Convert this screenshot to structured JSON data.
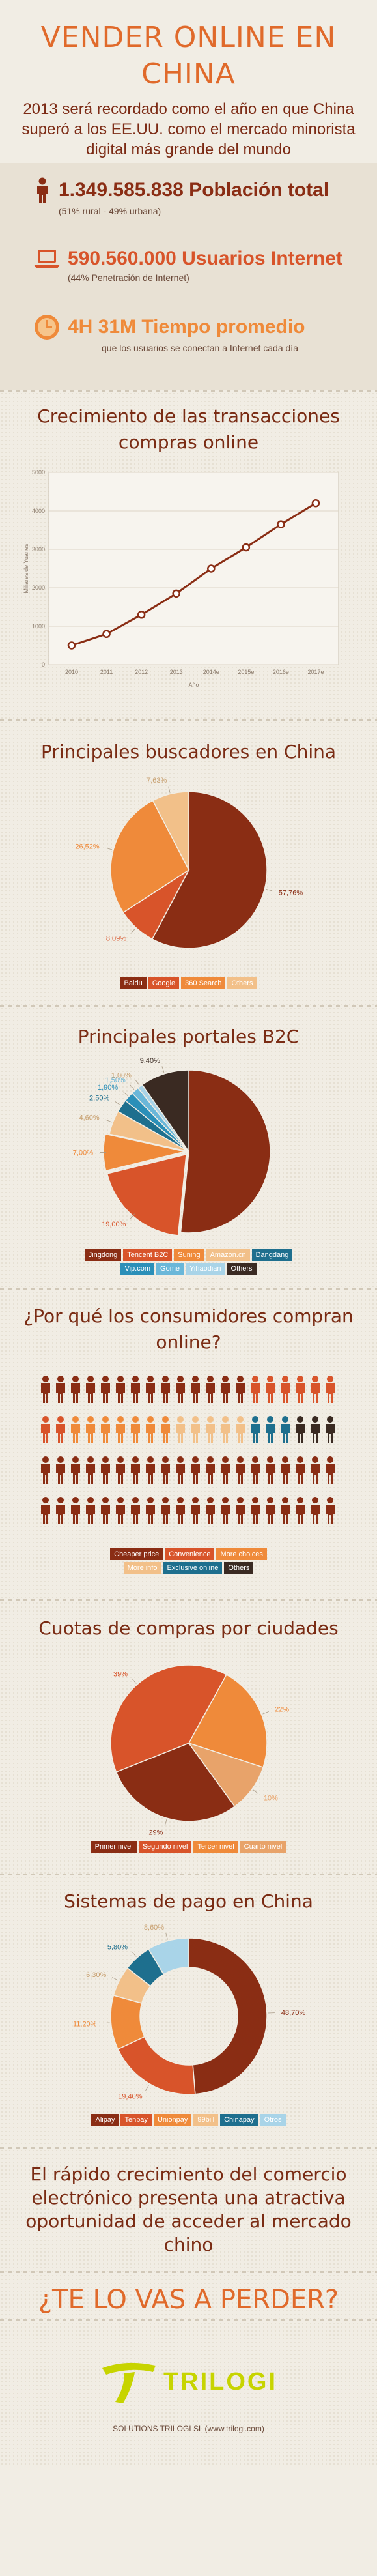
{
  "header": {
    "title_line1": "VENDER ONLINE EN",
    "title_line2": "CHINA",
    "subtitle": "2013 será recordado como el año en que China superó a los EE.UU. como el mercado minorista digital más grande del mundo"
  },
  "stats": [
    {
      "big": "1.349.585.838 Población total",
      "small": "(51% rural - 49% urbana)",
      "icon": "person-icon",
      "color": "#8a2d14"
    },
    {
      "big": "590.560.000 Usuarios Internet",
      "small": "(44% Penetración de Internet)",
      "icon": "laptop-icon",
      "color": "#d8542a"
    },
    {
      "big": "4H 31M Tiempo promedio",
      "small": "que los usuarios se conectan a Internet cada día",
      "icon": "clock-icon",
      "color": "#e8813a"
    }
  ],
  "colors": {
    "dark_red": "#8a2d14",
    "red_orange": "#d8542a",
    "orange": "#ef8a3a",
    "tan": "#e8a36a",
    "light_tan": "#f2c089",
    "dark_brown": "#3a2a22",
    "teal_dark": "#1e6f8e",
    "teal": "#2b8fb8",
    "sky": "#6ab7d9",
    "light_sky": "#a9d4e8"
  },
  "charts": [
    {
      "title_line1": "Crecimiento de las transacciones",
      "title_line2": "compras online",
      "chart_data": {
        "type": "line",
        "categories": [
          "2010",
          "2011",
          "2012",
          "2013",
          "2014e",
          "2015e",
          "2016e",
          "2017e"
        ],
        "values": [
          500,
          800,
          1300,
          1850,
          2500,
          3050,
          3650,
          4200
        ],
        "ylabel": "Miliares de Yuanes",
        "xlabel": "Año",
        "ylim": [
          0,
          5000
        ],
        "yticks": [
          "0",
          "1000",
          "2000",
          "3000",
          "4000",
          "5000"
        ]
      }
    },
    {
      "title": "Principales buscadores en China",
      "chart_data": {
        "type": "pie",
        "labels": [
          "Baidu",
          "Google",
          "360 Search",
          "Others"
        ],
        "values": [
          57.76,
          8.09,
          26.52,
          7.63
        ],
        "value_labels": [
          "57,76%",
          "8,09%",
          "26,52%",
          "7,63%"
        ],
        "colors": [
          "#8a2d14",
          "#d8542a",
          "#ef8a3a",
          "#f2c089"
        ]
      }
    },
    {
      "title": "Principales portales B2C",
      "chart_data": {
        "type": "pie",
        "labels": [
          "Jingdong",
          "Tencent B2C",
          "Suning",
          "Amazon.cn",
          "Dangdang",
          "Vip.com",
          "Gome",
          "Yihaodian",
          "Others"
        ],
        "values": [
          50.0,
          19.0,
          7.0,
          4.6,
          2.5,
          1.9,
          1.5,
          1.0,
          9.4
        ],
        "value_labels": [
          "",
          "19,00%",
          "7,00%",
          "4,60%",
          "2,50%",
          "1,90%",
          "1,50%",
          "1,00%",
          "9,40%"
        ],
        "colors": [
          "#8a2d14",
          "#d8542a",
          "#ef8a3a",
          "#f2c089",
          "#1e6f8e",
          "#2b8fb8",
          "#6ab7d9",
          "#a9d4e8",
          "#3a2a22"
        ]
      }
    },
    {
      "title_line1": "¿Por qué los consumidores compran",
      "title_line2": "online?",
      "chart_data": {
        "type": "pictogram",
        "labels": [
          "Cheaper price",
          "Convenience",
          "More choices",
          "More info",
          "Exclusive online",
          "Others"
        ],
        "counts": [
          14,
          8,
          7,
          5,
          3,
          3
        ],
        "colors": [
          "#8a2d14",
          "#d8542a",
          "#ef8a3a",
          "#f2c089",
          "#1e6f8e",
          "#3a2a22"
        ]
      }
    },
    {
      "title": "Cuotas de compras por ciudades",
      "chart_data": {
        "type": "pie",
        "labels": [
          "Primer nivel",
          "Segundo nivel",
          "Tercer nivel",
          "Cuarto nivel"
        ],
        "values": [
          29,
          39,
          22,
          10
        ],
        "value_labels": [
          "29%",
          "39%",
          "22%",
          "10%"
        ],
        "colors": [
          "#8a2d14",
          "#d8542a",
          "#ef8a3a",
          "#e8a36a"
        ]
      }
    },
    {
      "title": "Sistemas de pago en China",
      "chart_data": {
        "type": "donut",
        "labels": [
          "Alipay",
          "Tenpay",
          "Unionpay",
          "99bill",
          "Chinapay",
          "Otros"
        ],
        "values": [
          48.7,
          19.4,
          11.2,
          6.3,
          5.8,
          8.6
        ],
        "value_labels": [
          "48,70%",
          "19,40%",
          "11,20%",
          "6,30%",
          "5,80%",
          "8,60%"
        ],
        "colors": [
          "#8a2d14",
          "#d8542a",
          "#ef8a3a",
          "#f2c089",
          "#1e6f8e",
          "#a9d4e8"
        ]
      }
    }
  ],
  "closing": {
    "text_line1": "El rápido crecimiento del comercio",
    "text_line2": "electrónico presenta una atractiva",
    "text_line3": "oportunidad de acceder al mercado chino",
    "cta": "¿TE LO VAS A PERDER?"
  },
  "footer": {
    "logo_text": "TRILOGI",
    "credit": "SOLUTIONS TRILOGI SL (www.trilogi.com)"
  }
}
